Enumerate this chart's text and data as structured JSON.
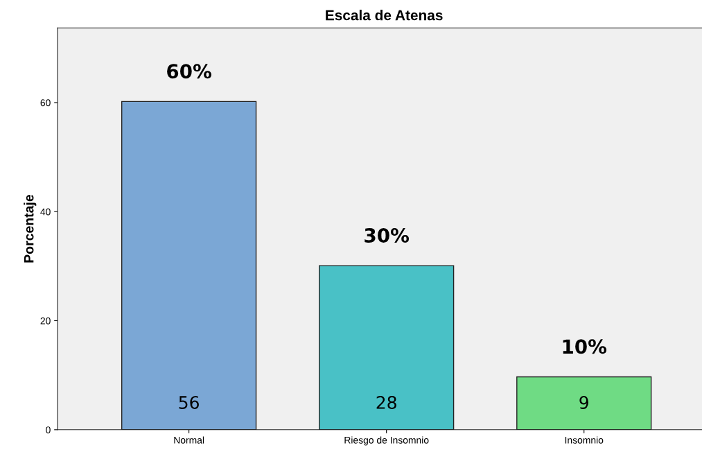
{
  "chart_data": {
    "type": "bar",
    "title": "Escala de Atenas",
    "ylabel": "Porcentaje",
    "categories": [
      "Normal",
      "Riesgo de Insomnio",
      "Insomnio"
    ],
    "values": [
      60.2,
      30.1,
      9.7
    ],
    "colors": [
      "#7ba7d5",
      "#49c1c6",
      "#6fdb84"
    ],
    "value_labels": [
      "60%",
      "30%",
      "10%"
    ],
    "annotations": [
      "56",
      "28",
      "9"
    ],
    "ylim": [
      0,
      73.7
    ],
    "yticks": [
      0,
      20,
      40,
      60
    ],
    "grid": false,
    "legend": false
  }
}
